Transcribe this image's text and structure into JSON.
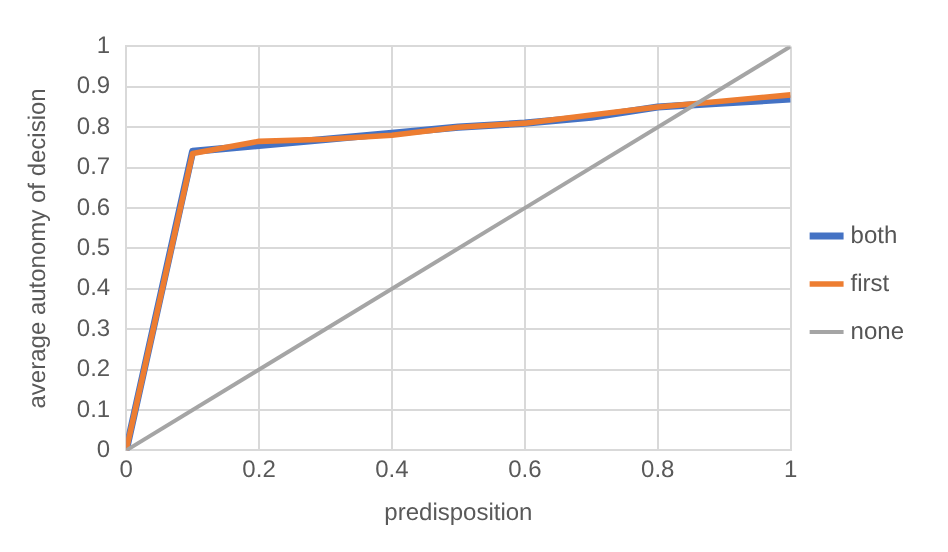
{
  "chart_data": {
    "type": "line",
    "xlabel": "predisposition",
    "ylabel": "average autonomy of decision",
    "xlim": [
      0,
      1
    ],
    "xticks": [
      0,
      0.2,
      0.4,
      0.6,
      0.8,
      1
    ],
    "ylim": [
      0,
      1
    ],
    "yticks": [
      0,
      0.1,
      0.2,
      0.3,
      0.4,
      0.5,
      0.6,
      0.7,
      0.8,
      0.9,
      1
    ],
    "grid": true,
    "legend": "right",
    "marker": "none",
    "line_style": "solid",
    "series": [
      {
        "name": "both",
        "color": "#4472c4",
        "x": [
          0,
          0.1,
          0.2,
          0.3,
          0.4,
          0.5,
          0.6,
          0.7,
          0.8,
          0.9,
          1
        ],
        "values": [
          0,
          0.74,
          0.755,
          0.77,
          0.785,
          0.8,
          0.81,
          0.825,
          0.85,
          0.86,
          0.87
        ]
      },
      {
        "name": "first",
        "color": "#ed7d31",
        "x": [
          0,
          0.1,
          0.2,
          0.3,
          0.4,
          0.5,
          0.6,
          0.7,
          0.8,
          0.9,
          1
        ],
        "values": [
          0,
          0.735,
          0.765,
          0.77,
          0.78,
          0.8,
          0.81,
          0.83,
          0.85,
          0.865,
          0.88
        ]
      },
      {
        "name": "none",
        "color": "#a5a5a5",
        "x": [
          0,
          1
        ],
        "values": [
          0,
          1
        ]
      }
    ]
  }
}
